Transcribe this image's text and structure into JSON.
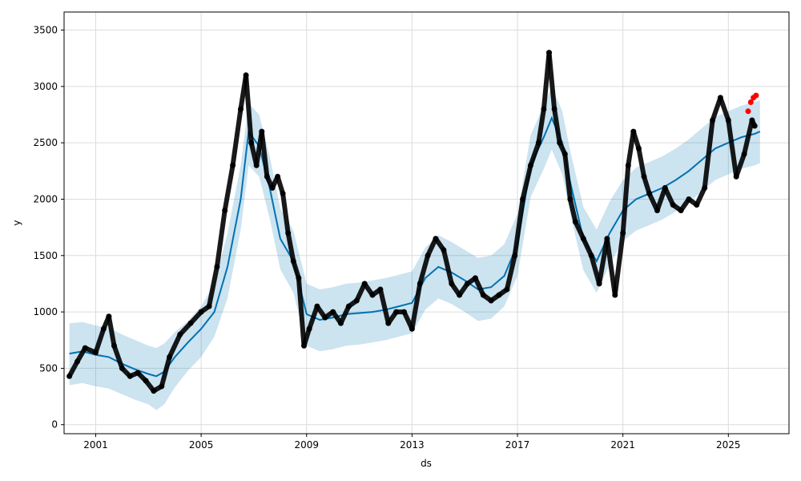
{
  "chart_data": {
    "type": "line",
    "xlabel": "ds",
    "ylabel": "y",
    "xlim": [
      1999.8,
      2027.3
    ],
    "ylim": [
      -80,
      3660
    ],
    "grid": true,
    "x_ticks": [
      {
        "value": 2001,
        "label": "2001"
      },
      {
        "value": 2005,
        "label": "2005"
      },
      {
        "value": 2009,
        "label": "2009"
      },
      {
        "value": 2013,
        "label": "2013"
      },
      {
        "value": 2017,
        "label": "2017"
      },
      {
        "value": 2021,
        "label": "2021"
      },
      {
        "value": 2025,
        "label": "2025"
      }
    ],
    "y_ticks": [
      0,
      500,
      1000,
      1500,
      2000,
      2500,
      3000,
      3500
    ],
    "colors": {
      "forecast": "#0072B2",
      "interval": "#0072B2",
      "observed": "#000000",
      "actual_future": "#ff0000"
    },
    "forecast": {
      "x": [
        2000.0,
        2000.5,
        2001.0,
        2001.5,
        2002.0,
        2002.5,
        2003.0,
        2003.3,
        2003.6,
        2004.0,
        2004.5,
        2005.0,
        2005.5,
        2006.0,
        2006.5,
        2006.8,
        2007.2,
        2007.6,
        2008.0,
        2008.5,
        2009.0,
        2009.5,
        2010.0,
        2010.5,
        2011.0,
        2011.5,
        2012.0,
        2012.5,
        2013.0,
        2013.5,
        2014.0,
        2014.5,
        2015.0,
        2015.5,
        2016.0,
        2016.5,
        2017.0,
        2017.5,
        2018.0,
        2018.3,
        2018.7,
        2019.0,
        2019.5,
        2020.0,
        2020.5,
        2021.0,
        2021.5,
        2022.0,
        2022.5,
        2023.0,
        2023.5,
        2024.0,
        2024.5,
        2025.0,
        2025.5,
        2026.0,
        2026.2
      ],
      "yhat": [
        630,
        650,
        620,
        600,
        540,
        490,
        450,
        430,
        470,
        600,
        730,
        850,
        1000,
        1400,
        2000,
        2600,
        2470,
        2100,
        1650,
        1450,
        980,
        930,
        950,
        980,
        990,
        1000,
        1020,
        1050,
        1080,
        1300,
        1400,
        1350,
        1280,
        1200,
        1220,
        1320,
        1600,
        2300,
        2550,
        2720,
        2500,
        2150,
        1650,
        1450,
        1700,
        1900,
        2000,
        2050,
        2100,
        2170,
        2250,
        2350,
        2450,
        2500,
        2550,
        2580,
        2600
      ],
      "upper": [
        900,
        910,
        880,
        860,
        800,
        750,
        700,
        680,
        720,
        820,
        920,
        1050,
        1250,
        1700,
        2300,
        2850,
        2750,
        2380,
        1920,
        1720,
        1250,
        1200,
        1220,
        1250,
        1260,
        1280,
        1300,
        1330,
        1360,
        1570,
        1680,
        1620,
        1550,
        1480,
        1500,
        1600,
        1870,
        2570,
        2830,
        3000,
        2780,
        2430,
        1930,
        1730,
        1980,
        2170,
        2280,
        2330,
        2380,
        2450,
        2530,
        2630,
        2730,
        2780,
        2830,
        2860,
        2880
      ],
      "lower": [
        350,
        370,
        340,
        320,
        270,
        220,
        180,
        130,
        180,
        330,
        480,
        600,
        780,
        1120,
        1730,
        2300,
        2200,
        1830,
        1380,
        1170,
        700,
        650,
        670,
        700,
        710,
        730,
        750,
        780,
        810,
        1020,
        1120,
        1070,
        1000,
        920,
        940,
        1050,
        1320,
        2020,
        2270,
        2440,
        2220,
        1870,
        1370,
        1170,
        1420,
        1630,
        1720,
        1770,
        1820,
        1890,
        1970,
        2070,
        2170,
        2220,
        2270,
        2300,
        2320
      ]
    },
    "observed": {
      "x": [
        2000.0,
        2000.3,
        2000.6,
        2001.0,
        2001.3,
        2001.5,
        2001.7,
        2002.0,
        2002.3,
        2002.6,
        2002.9,
        2003.2,
        2003.5,
        2003.8,
        2004.2,
        2004.6,
        2005.0,
        2005.3,
        2005.6,
        2005.9,
        2006.2,
        2006.5,
        2006.7,
        2006.9,
        2007.1,
        2007.3,
        2007.5,
        2007.7,
        2007.9,
        2008.1,
        2008.3,
        2008.5,
        2008.7,
        2008.9,
        2009.1,
        2009.4,
        2009.7,
        2010.0,
        2010.3,
        2010.6,
        2010.9,
        2011.2,
        2011.5,
        2011.8,
        2012.1,
        2012.4,
        2012.7,
        2013.0,
        2013.3,
        2013.6,
        2013.9,
        2014.2,
        2014.5,
        2014.8,
        2015.1,
        2015.4,
        2015.7,
        2016.0,
        2016.3,
        2016.6,
        2016.9,
        2017.2,
        2017.5,
        2017.8,
        2018.0,
        2018.2,
        2018.4,
        2018.6,
        2018.8,
        2019.0,
        2019.2,
        2019.5,
        2019.8,
        2020.1,
        2020.4,
        2020.7,
        2021.0,
        2021.2,
        2021.4,
        2021.6,
        2021.8,
        2022.0,
        2022.3,
        2022.6,
        2022.9,
        2023.2,
        2023.5,
        2023.8,
        2024.1,
        2024.4,
        2024.7,
        2025.0,
        2025.3,
        2025.6,
        2025.9,
        2026.0
      ],
      "y": [
        430,
        560,
        680,
        640,
        850,
        960,
        700,
        500,
        430,
        460,
        390,
        300,
        340,
        600,
        800,
        900,
        1000,
        1050,
        1400,
        1900,
        2300,
        2800,
        3100,
        2500,
        2300,
        2600,
        2200,
        2100,
        2200,
        2050,
        1700,
        1450,
        1300,
        700,
        850,
        1050,
        950,
        1000,
        900,
        1050,
        1100,
        1250,
        1150,
        1200,
        900,
        1000,
        1000,
        850,
        1250,
        1500,
        1650,
        1550,
        1250,
        1150,
        1250,
        1300,
        1150,
        1100,
        1150,
        1200,
        1500,
        2000,
        2300,
        2500,
        2800,
        3300,
        2800,
        2500,
        2400,
        2000,
        1800,
        1650,
        1500,
        1250,
        1650,
        1150,
        1700,
        2300,
        2600,
        2450,
        2200,
        2050,
        1900,
        2100,
        1950,
        1900,
        2000,
        1950,
        2100,
        2700,
        2900,
        2700,
        2200,
        2400,
        2700,
        2650
      ]
    },
    "actual_future": {
      "x": [
        2025.75,
        2025.85,
        2025.95,
        2026.05
      ],
      "y": [
        2780,
        2860,
        2900,
        2920
      ]
    }
  }
}
